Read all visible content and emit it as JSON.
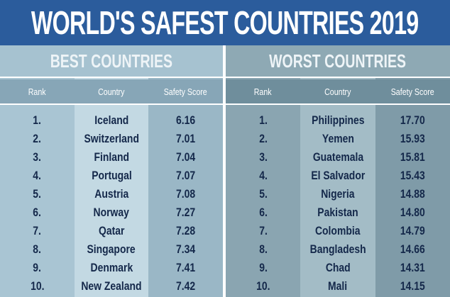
{
  "title": "WORLD'S SAFEST COUNTRIES 2019",
  "best": {
    "heading": "BEST COUNTRIES",
    "columns": [
      "Rank",
      "Country",
      "Safety Score"
    ],
    "rows": [
      [
        "1.",
        "Iceland",
        "6.16"
      ],
      [
        "2.",
        "Switzerland",
        "7.01"
      ],
      [
        "3.",
        "Finland",
        "7.04"
      ],
      [
        "4.",
        "Portugal",
        "7.07"
      ],
      [
        "5.",
        "Austria",
        "7.08"
      ],
      [
        "6.",
        "Norway",
        "7.27"
      ],
      [
        "7.",
        "Qatar",
        "7.28"
      ],
      [
        "8.",
        "Singapore",
        "7.34"
      ],
      [
        "9.",
        "Denmark",
        "7.41"
      ],
      [
        "10.",
        "New Zealand",
        "7.42"
      ]
    ]
  },
  "worst": {
    "heading": "WORST COUNTRIES",
    "columns": [
      "Rank",
      "Country",
      "Safety Score"
    ],
    "rows": [
      [
        "1.",
        "Philippines",
        "17.70"
      ],
      [
        "2.",
        "Yemen",
        "15.93"
      ],
      [
        "3.",
        "Guatemala",
        "15.81"
      ],
      [
        "4.",
        "El Salvador",
        "15.43"
      ],
      [
        "5.",
        "Nigeria",
        "14.88"
      ],
      [
        "6.",
        "Pakistan",
        "14.80"
      ],
      [
        "7.",
        "Colombia",
        "14.79"
      ],
      [
        "8.",
        "Bangladesh",
        "14.66"
      ],
      [
        "9.",
        "Chad",
        "14.31"
      ],
      [
        "10.",
        "Mali",
        "14.15"
      ]
    ]
  }
}
